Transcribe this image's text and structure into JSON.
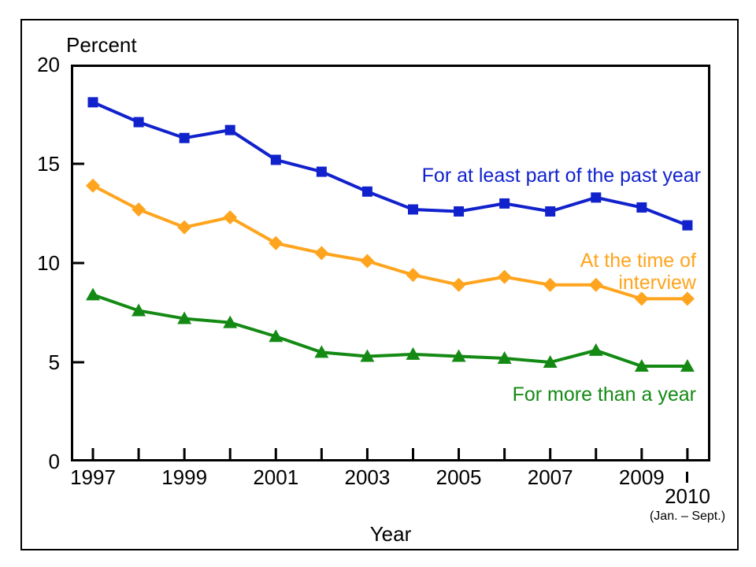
{
  "figure": {
    "y_axis_title": "Percent",
    "x_axis_title": "Year",
    "final_tick_label": "2010",
    "final_tick_sublabel": "(Jan. – Sept.)"
  },
  "chart_data": {
    "type": "line",
    "x": [
      1997,
      1998,
      1999,
      2000,
      2001,
      2002,
      2003,
      2004,
      2005,
      2006,
      2007,
      2008,
      2009,
      2010
    ],
    "x_tick_labels": [
      "1997",
      "1999",
      "2001",
      "2003",
      "2005",
      "2007",
      "2009"
    ],
    "y_ticks": [
      0,
      5,
      10,
      15,
      20
    ],
    "y_tick_labels": [
      "0",
      "5",
      "10",
      "15",
      "20"
    ],
    "ylim": [
      0,
      20
    ],
    "xlabel": "Year",
    "ylabel": "Percent",
    "grid": false,
    "legend_position": "inline-annotations",
    "axis_color": "#000000",
    "series": [
      {
        "name": "For at least part of the past year",
        "label_lines": [
          "For at least part of the past year"
        ],
        "marker": "square",
        "color": "#1122cc",
        "values": [
          18.1,
          17.1,
          16.3,
          16.7,
          15.2,
          14.6,
          13.6,
          12.7,
          12.6,
          13.0,
          12.6,
          13.3,
          12.8,
          11.9
        ]
      },
      {
        "name": "At the time of interview",
        "label_lines": [
          "At the time of",
          "interview"
        ],
        "marker": "diamond",
        "color": "#ffa41e",
        "values": [
          13.9,
          12.7,
          11.8,
          12.3,
          11.0,
          10.5,
          10.1,
          9.4,
          8.9,
          9.3,
          8.9,
          8.9,
          8.2,
          8.2
        ]
      },
      {
        "name": "For more than a year",
        "label_lines": [
          "For more than a year"
        ],
        "marker": "triangle",
        "color": "#148a14",
        "values": [
          8.4,
          7.6,
          7.2,
          7.0,
          6.3,
          5.5,
          5.3,
          5.4,
          5.3,
          5.2,
          5.0,
          5.6,
          4.8,
          4.8
        ]
      }
    ]
  }
}
